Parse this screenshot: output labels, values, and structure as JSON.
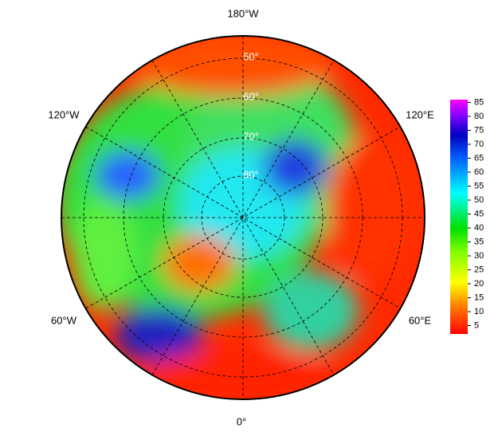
{
  "map": {
    "longitude_labels": [
      "180°W",
      "120°E",
      "60°E",
      "0°",
      "60°W",
      "120°W"
    ],
    "latitude_labels": [
      "50°",
      "60°",
      "70°",
      "80°"
    ]
  },
  "colorbar": {
    "range": [
      2,
      86
    ],
    "ticks": [
      5,
      10,
      15,
      20,
      25,
      30,
      35,
      40,
      45,
      50,
      55,
      60,
      65,
      70,
      75,
      80,
      85
    ]
  }
}
